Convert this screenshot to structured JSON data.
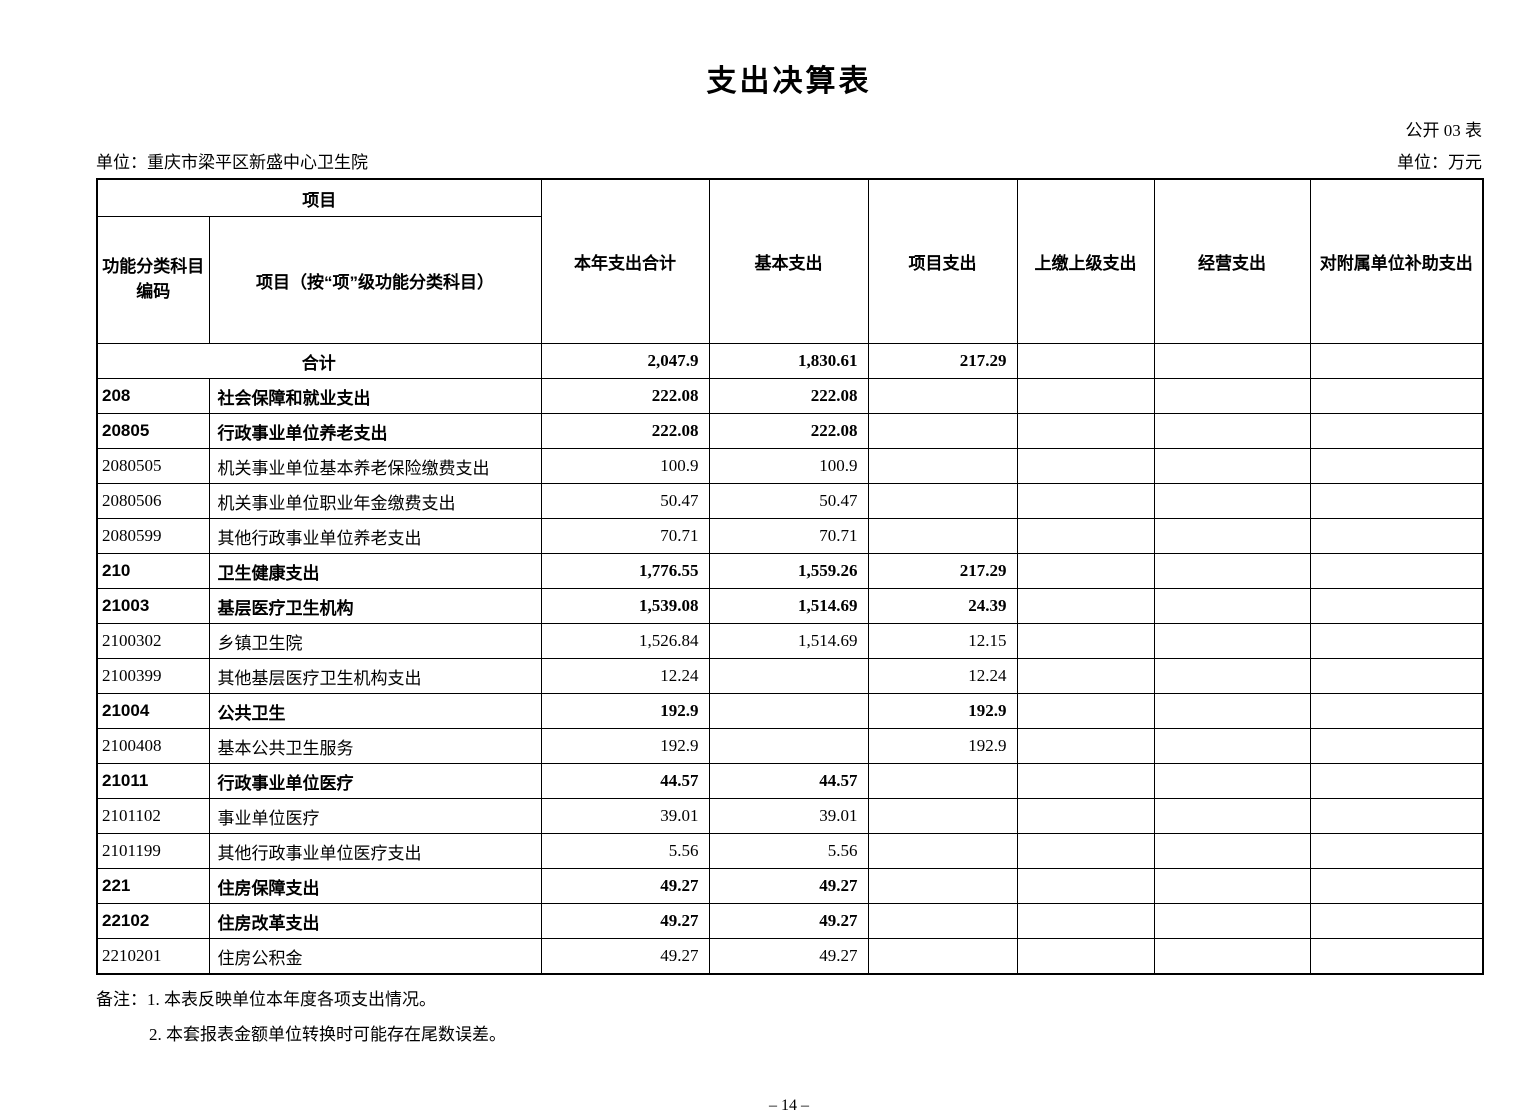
{
  "page": {
    "title": "支出决算表",
    "doc_label": "公开 03 表",
    "unit_name": "单位：重庆市梁平区新盛中心卫生院",
    "unit_measure": "单位：万元",
    "page_number": "– 14 –"
  },
  "table": {
    "header": {
      "project_group": "项目",
      "col_code_line1": "功能分类科目",
      "col_code_line2": "编码",
      "col_project": "项目（按“项”级功能分类科目）",
      "col_total": "本年支出合计",
      "col_basic": "基本支出",
      "col_project_exp": "项目支出",
      "col_upper": "上缴上级支出",
      "col_operating": "经营支出",
      "col_subsidy": "对附属单位补助支出"
    },
    "rows": [
      {
        "code": "",
        "name": "合计",
        "total": "2,047.9",
        "basic": "1,830.61",
        "project": "217.29",
        "upper": "",
        "operating": "",
        "subsidy": "",
        "bold": true,
        "merged": true
      },
      {
        "code": "208",
        "name": "社会保障和就业支出",
        "total": "222.08",
        "basic": "222.08",
        "project": "",
        "upper": "",
        "operating": "",
        "subsidy": "",
        "bold": true,
        "merged": false
      },
      {
        "code": "20805",
        "name": "行政事业单位养老支出",
        "total": "222.08",
        "basic": "222.08",
        "project": "",
        "upper": "",
        "operating": "",
        "subsidy": "",
        "bold": true,
        "merged": false
      },
      {
        "code": "2080505",
        "name": "机关事业单位基本养老保险缴费支出",
        "total": "100.9",
        "basic": "100.9",
        "project": "",
        "upper": "",
        "operating": "",
        "subsidy": "",
        "bold": false,
        "merged": false
      },
      {
        "code": "2080506",
        "name": "机关事业单位职业年金缴费支出",
        "total": "50.47",
        "basic": "50.47",
        "project": "",
        "upper": "",
        "operating": "",
        "subsidy": "",
        "bold": false,
        "merged": false
      },
      {
        "code": "2080599",
        "name": "其他行政事业单位养老支出",
        "total": "70.71",
        "basic": "70.71",
        "project": "",
        "upper": "",
        "operating": "",
        "subsidy": "",
        "bold": false,
        "merged": false
      },
      {
        "code": "210",
        "name": "卫生健康支出",
        "total": "1,776.55",
        "basic": "1,559.26",
        "project": "217.29",
        "upper": "",
        "operating": "",
        "subsidy": "",
        "bold": true,
        "merged": false
      },
      {
        "code": "21003",
        "name": "基层医疗卫生机构",
        "total": "1,539.08",
        "basic": "1,514.69",
        "project": "24.39",
        "upper": "",
        "operating": "",
        "subsidy": "",
        "bold": true,
        "merged": false
      },
      {
        "code": "2100302",
        "name": "乡镇卫生院",
        "total": "1,526.84",
        "basic": "1,514.69",
        "project": "12.15",
        "upper": "",
        "operating": "",
        "subsidy": "",
        "bold": false,
        "merged": false
      },
      {
        "code": "2100399",
        "name": "其他基层医疗卫生机构支出",
        "total": "12.24",
        "basic": "",
        "project": "12.24",
        "upper": "",
        "operating": "",
        "subsidy": "",
        "bold": false,
        "merged": false
      },
      {
        "code": "21004",
        "name": "公共卫生",
        "total": "192.9",
        "basic": "",
        "project": "192.9",
        "upper": "",
        "operating": "",
        "subsidy": "",
        "bold": true,
        "merged": false
      },
      {
        "code": "2100408",
        "name": "基本公共卫生服务",
        "total": "192.9",
        "basic": "",
        "project": "192.9",
        "upper": "",
        "operating": "",
        "subsidy": "",
        "bold": false,
        "merged": false
      },
      {
        "code": "21011",
        "name": "行政事业单位医疗",
        "total": "44.57",
        "basic": "44.57",
        "project": "",
        "upper": "",
        "operating": "",
        "subsidy": "",
        "bold": true,
        "merged": false
      },
      {
        "code": "2101102",
        "name": "事业单位医疗",
        "total": "39.01",
        "basic": "39.01",
        "project": "",
        "upper": "",
        "operating": "",
        "subsidy": "",
        "bold": false,
        "merged": false
      },
      {
        "code": "2101199",
        "name": "其他行政事业单位医疗支出",
        "total": "5.56",
        "basic": "5.56",
        "project": "",
        "upper": "",
        "operating": "",
        "subsidy": "",
        "bold": false,
        "merged": false
      },
      {
        "code": "221",
        "name": "住房保障支出",
        "total": "49.27",
        "basic": "49.27",
        "project": "",
        "upper": "",
        "operating": "",
        "subsidy": "",
        "bold": true,
        "merged": false
      },
      {
        "code": "22102",
        "name": "住房改革支出",
        "total": "49.27",
        "basic": "49.27",
        "project": "",
        "upper": "",
        "operating": "",
        "subsidy": "",
        "bold": true,
        "merged": false
      },
      {
        "code": "2210201",
        "name": "住房公积金",
        "total": "49.27",
        "basic": "49.27",
        "project": "",
        "upper": "",
        "operating": "",
        "subsidy": "",
        "bold": false,
        "merged": false
      }
    ]
  },
  "notes": {
    "line1": "备注：1. 本表反映单位本年度各项支出情况。",
    "line2": "2. 本套报表金额单位转换时可能存在尾数误差。"
  }
}
